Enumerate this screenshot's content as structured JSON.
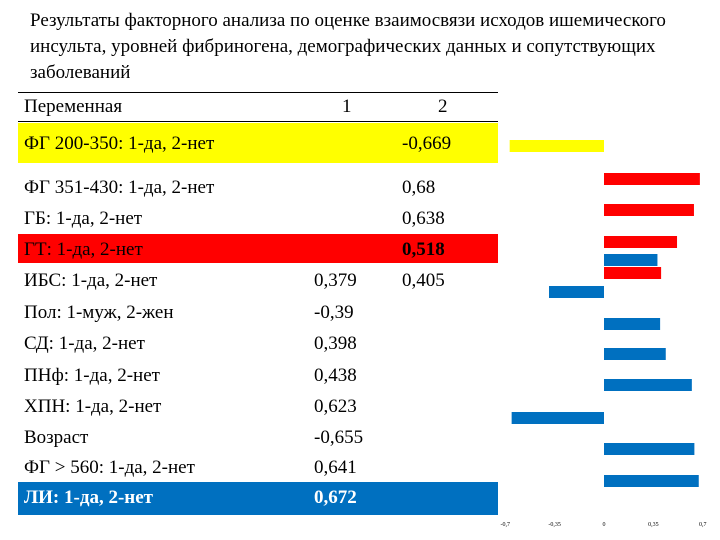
{
  "title": "Результаты факторного анализа по оценке взаимосвязи исходов ишемического инсульта, уровней фибриногена, демографических данных и сопутствующих заболеваний",
  "table": {
    "headers": [
      "Переменная",
      "1",
      "2"
    ],
    "rows": [
      {
        "label": "ФГ 200-350: 1-да, 2-нет",
        "f1": "",
        "f2": "-0,669",
        "highlight": "yellow"
      },
      {
        "label": "ФГ 351-430: 1-да, 2-нет",
        "f1": "",
        "f2": "0,68",
        "highlight": ""
      },
      {
        "label": "ГБ: 1-да, 2-нет",
        "f1": "",
        "f2": "0,638",
        "highlight": ""
      },
      {
        "label": "ГТ: 1-да, 2-нет",
        "f1": "",
        "f2": "0,518",
        "highlight": "red"
      },
      {
        "label": "ИБС: 1-да, 2-нет",
        "f1": "0,379",
        "f2": "0,405",
        "highlight": ""
      },
      {
        "label": "Пол: 1-муж, 2-жен",
        "f1": "-0,39",
        "f2": "",
        "highlight": ""
      },
      {
        "label": "СД: 1-да, 2-нет",
        "f1": "0,398",
        "f2": "",
        "highlight": ""
      },
      {
        "label": "ПНф: 1-да, 2-нет",
        "f1": "0,438",
        "f2": "",
        "highlight": ""
      },
      {
        "label": "ХПН: 1-да, 2-нет",
        "f1": "0,623",
        "f2": "",
        "highlight": ""
      },
      {
        "label": "Возраст",
        "f1": "-0,655",
        "f2": "",
        "highlight": ""
      },
      {
        "label": "ФГ > 560: 1-да, 2-нет",
        "f1": "0,641",
        "f2": "",
        "highlight": ""
      },
      {
        "label": "ЛИ: 1-да, 2-нет",
        "f1": "0,672",
        "f2": "",
        "highlight": "blue"
      }
    ]
  },
  "chart_data": {
    "type": "bar",
    "orientation": "horizontal",
    "xlim": [
      -0.7,
      0.7
    ],
    "x_ticks": [
      "-0,7",
      "-0,35",
      "0",
      "0,35",
      "0,7"
    ],
    "x_tick_values": [
      -0.7,
      -0.35,
      0,
      0.35,
      0.7
    ],
    "bars": [
      {
        "value": -0.669,
        "color": "#ffff00"
      },
      {
        "value": 0.68,
        "color": "#ff0000"
      },
      {
        "value": 0.638,
        "color": "#ff0000"
      },
      {
        "value": 0.518,
        "color": "#ff0000"
      },
      {
        "value": 0.379,
        "color": "#0070c0"
      },
      {
        "value": 0.405,
        "color": "#ff0000"
      },
      {
        "value": -0.39,
        "color": "#0070c0"
      },
      {
        "value": 0.398,
        "color": "#0070c0"
      },
      {
        "value": 0.438,
        "color": "#0070c0"
      },
      {
        "value": 0.623,
        "color": "#0070c0"
      },
      {
        "value": -0.655,
        "color": "#0070c0"
      },
      {
        "value": 0.641,
        "color": "#0070c0"
      },
      {
        "value": 0.672,
        "color": "#0070c0"
      }
    ]
  }
}
